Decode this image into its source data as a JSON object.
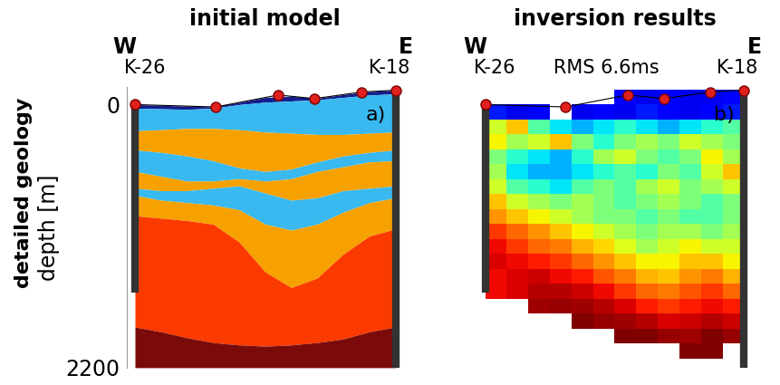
{
  "profile": {
    "west": "W",
    "east": "E",
    "stations": {
      "x": [
        0.0,
        0.31,
        0.55,
        0.69,
        0.87,
        1.0
      ],
      "depth": [
        0,
        20,
        -80,
        -50,
        -105,
        -120
      ]
    },
    "wells": [
      {
        "name": "K-26",
        "x": 0.0,
        "top": 0,
        "bottom": 1570
      },
      {
        "name": "K-18",
        "x": 1.0,
        "top": -120,
        "bottom": 2200
      }
    ]
  },
  "chart_data": [
    {
      "type": "layers",
      "title": "initial model",
      "panel_label": "a)",
      "row_label": "detailed geology",
      "ylabel": "depth [m]",
      "ylim": [
        2200,
        -150
      ],
      "yticks": [
        0,
        2200
      ],
      "tick_labels": "y",
      "x": [
        0.0,
        0.1,
        0.2,
        0.3,
        0.4,
        0.5,
        0.6,
        0.7,
        0.8,
        0.9,
        1.0
      ],
      "boundaries": [
        [
          30,
          35,
          40,
          30,
          0,
          -20,
          -30,
          -40,
          -60,
          -80,
          -90
        ],
        [
          220,
          210,
          200,
          200,
          210,
          230,
          240,
          250,
          250,
          240,
          230
        ],
        [
          380,
          400,
          430,
          470,
          530,
          560,
          540,
          480,
          430,
          400,
          380
        ],
        [
          560,
          600,
          640,
          640,
          620,
          640,
          620,
          560,
          520,
          480,
          470
        ],
        [
          700,
          720,
          720,
          700,
          680,
          740,
          800,
          780,
          720,
          700,
          680
        ],
        [
          760,
          800,
          820,
          840,
          880,
          1000,
          1050,
          1000,
          900,
          820,
          780
        ],
        [
          930,
          950,
          970,
          1000,
          1150,
          1400,
          1530,
          1450,
          1250,
          1100,
          1040
        ],
        [
          1860,
          1900,
          1950,
          1990,
          2010,
          2020,
          2010,
          1990,
          1960,
          1900,
          1860
        ]
      ],
      "colors": [
        "#141e8f",
        "#39b9ef",
        "#f7a100",
        "#39b9ef",
        "#f7a100",
        "#39b9ef",
        "#f7a100",
        "#fb3a00",
        "#7b0a0a"
      ]
    },
    {
      "type": "heatmap",
      "title": "inversion results",
      "panel_label": "b)",
      "annotation": "RMS 6.6ms",
      "tick_labels": false,
      "clim": [
        0,
        1
      ],
      "x_edges": [
        0.0,
        0.0833,
        0.1667,
        0.25,
        0.3333,
        0.4167,
        0.5,
        0.5833,
        0.6667,
        0.75,
        0.8333,
        0.9167,
        1.0
      ],
      "depth_edges": [
        -125,
        0,
        125,
        250,
        375,
        500,
        625,
        750,
        875,
        1000,
        1125,
        1250,
        1375,
        1500,
        1625,
        1750,
        1875,
        2000,
        2125
      ],
      "cells": [
        [
          null,
          null,
          null,
          null,
          null,
          null,
          0.12,
          0.1,
          0.12,
          0.1,
          0.1,
          0.12
        ],
        [
          0.15,
          0.1,
          0.12,
          null,
          0.1,
          0.12,
          0.1,
          0.15,
          0.12,
          0.1,
          0.12,
          0.15
        ],
        [
          0.6,
          0.7,
          0.45,
          0.35,
          0.3,
          0.35,
          0.4,
          0.35,
          0.3,
          0.35,
          0.4,
          0.45
        ],
        [
          0.65,
          0.55,
          0.6,
          0.7,
          0.5,
          0.4,
          0.5,
          0.55,
          0.5,
          0.6,
          0.55,
          0.5
        ],
        [
          0.5,
          0.4,
          0.35,
          0.3,
          0.4,
          0.55,
          0.6,
          0.5,
          0.45,
          0.5,
          0.65,
          0.55
        ],
        [
          0.55,
          0.35,
          0.3,
          0.3,
          0.35,
          0.4,
          0.45,
          0.4,
          0.5,
          0.45,
          0.6,
          0.7
        ],
        [
          0.6,
          0.45,
          0.4,
          0.35,
          0.45,
          0.5,
          0.45,
          0.55,
          0.6,
          0.5,
          0.55,
          0.6
        ],
        [
          0.7,
          0.6,
          0.55,
          0.5,
          0.55,
          0.5,
          0.45,
          0.5,
          0.55,
          0.5,
          0.45,
          0.5
        ],
        [
          0.75,
          0.7,
          0.65,
          0.6,
          0.55,
          0.5,
          0.5,
          0.45,
          0.5,
          0.45,
          0.45,
          0.5
        ],
        [
          0.85,
          0.8,
          0.75,
          0.7,
          0.65,
          0.6,
          0.55,
          0.5,
          0.55,
          0.55,
          0.5,
          0.55
        ],
        [
          0.9,
          0.85,
          0.8,
          0.78,
          0.72,
          0.68,
          0.62,
          0.55,
          0.6,
          0.65,
          0.6,
          0.6
        ],
        [
          0.92,
          0.9,
          0.88,
          0.85,
          0.8,
          0.75,
          0.7,
          0.65,
          0.65,
          0.7,
          0.7,
          0.65
        ],
        [
          0.9,
          0.92,
          0.93,
          0.9,
          0.88,
          0.82,
          0.78,
          0.72,
          0.7,
          0.75,
          0.78,
          0.72
        ],
        [
          0.9,
          0.92,
          0.95,
          0.95,
          0.93,
          0.9,
          0.85,
          0.8,
          0.78,
          0.82,
          0.85,
          0.8
        ],
        [
          null,
          null,
          0.97,
          0.98,
          0.97,
          0.95,
          0.92,
          0.88,
          0.85,
          0.88,
          0.9,
          0.88
        ],
        [
          null,
          null,
          null,
          null,
          1.0,
          0.98,
          0.97,
          0.95,
          0.92,
          0.93,
          0.95,
          0.93
        ],
        [
          null,
          null,
          null,
          null,
          null,
          null,
          1.0,
          1.0,
          0.98,
          0.97,
          1.0,
          0.98
        ],
        [
          null,
          null,
          null,
          null,
          null,
          null,
          null,
          null,
          null,
          1.0,
          1.0,
          null
        ]
      ]
    }
  ]
}
